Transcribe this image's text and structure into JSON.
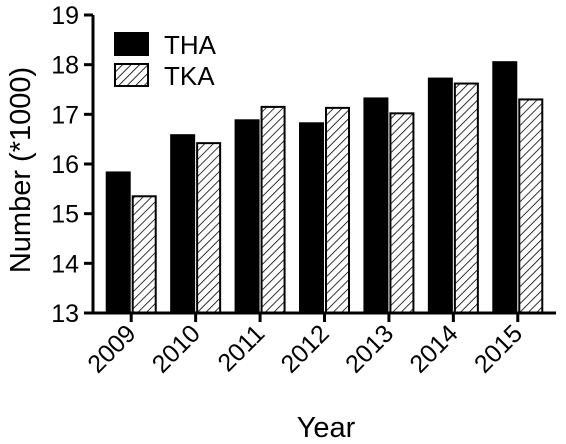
{
  "chart_data": {
    "type": "bar",
    "title": "",
    "xlabel": "Year",
    "ylabel": "Number (*1000)",
    "categories": [
      "2009",
      "2010",
      "2011",
      "2012",
      "2013",
      "2014",
      "2015"
    ],
    "series": [
      {
        "name": "THA",
        "values": [
          15.83,
          16.58,
          16.88,
          16.82,
          17.32,
          17.72,
          18.05
        ],
        "fill": "solid"
      },
      {
        "name": "TKA",
        "values": [
          15.35,
          16.42,
          17.15,
          17.13,
          17.02,
          17.62,
          17.3
        ],
        "fill": "hatched"
      }
    ],
    "ylim": [
      13,
      19
    ],
    "yticks": [
      13,
      14,
      15,
      16,
      17,
      18,
      19
    ],
    "grid": false,
    "legend_position": "top-left",
    "colors": {
      "bar": "#000000",
      "hatch_bg": "#ffffff",
      "axis": "#000000"
    }
  }
}
